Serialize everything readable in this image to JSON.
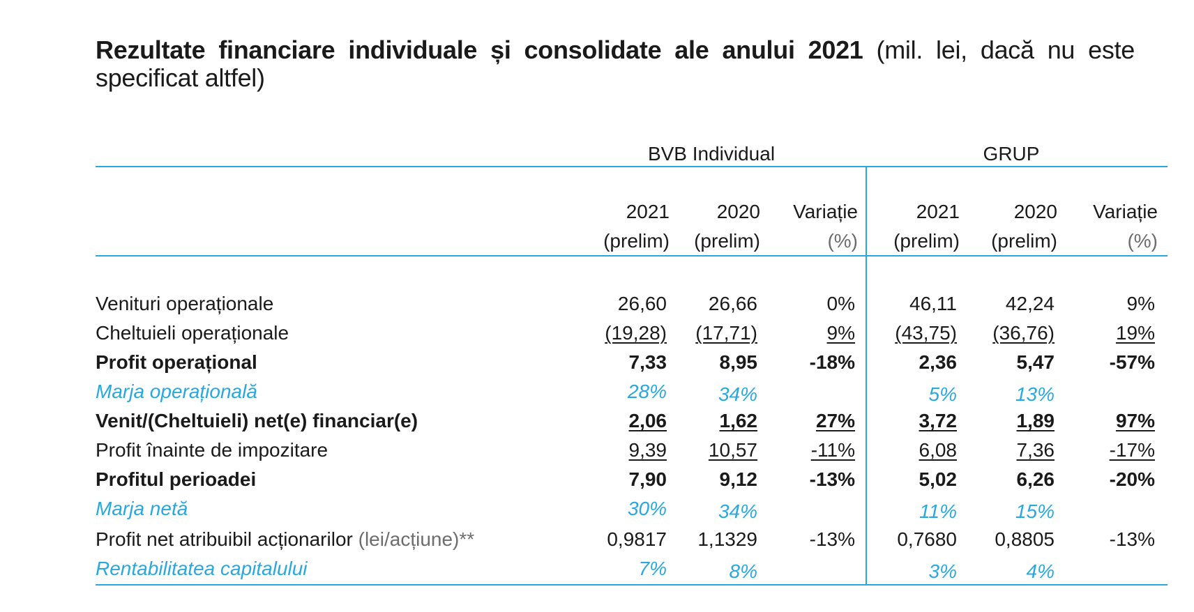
{
  "title": {
    "bold": "Rezultate financiare individuale și consolidate ale anului 2021",
    "normal": " (mil. lei, dacă nu este specificat altfel)"
  },
  "groups": {
    "individual": "BVB Individual",
    "grup": "GRUP"
  },
  "columns": [
    {
      "line1": "2021",
      "line2": "(prelim)"
    },
    {
      "line1": "2020",
      "line2": "(prelim)"
    },
    {
      "line1": "Variație",
      "line2": "(%)"
    },
    {
      "line1": "2021",
      "line2": "(prelim)"
    },
    {
      "line1": "2020",
      "line2": "(prelim)"
    },
    {
      "line1": "Variație",
      "line2": "(%)"
    }
  ],
  "rows": [
    {
      "label": "Venituri operaționale",
      "values": [
        "26,60",
        "26,66",
        "0%",
        "46,11",
        "42,24",
        "9%"
      ]
    },
    {
      "label": "Cheltuieli operaționale",
      "values": [
        "(19,28)",
        "(17,71)",
        "9%",
        "(43,75)",
        "(36,76)",
        "19%"
      ]
    },
    {
      "label": "Profit operațional",
      "values": [
        "7,33",
        "8,95",
        "-18%",
        "2,36",
        "5,47",
        "-57%"
      ]
    },
    {
      "label": "Marja operațională",
      "values": [
        "28%",
        "34%",
        "",
        "5%",
        "13%",
        ""
      ]
    },
    {
      "label": "Venit/(Cheltuieli) net(e) financiar(e)",
      "values": [
        "2,06",
        "1,62",
        "27%",
        "3,72",
        "1,89",
        "97%"
      ]
    },
    {
      "label": "Profit înainte de impozitare",
      "values": [
        "9,39",
        "10,57",
        "-11%",
        "6,08",
        "7,36",
        "-17%"
      ]
    },
    {
      "label": "Profitul perioadei",
      "values": [
        "7,90",
        "9,12",
        "-13%",
        "5,02",
        "6,26",
        "-20%"
      ]
    },
    {
      "label": "Marja netă",
      "values": [
        "30%",
        "34%",
        "",
        "11%",
        "15%",
        ""
      ]
    },
    {
      "label": "Profit net atribuibil acționarilor",
      "label_suffix": " (lei/acțiune)**",
      "values": [
        "0,9817",
        "1,1329",
        "-13%",
        "0,7680",
        "0,8805",
        "-13%"
      ]
    },
    {
      "label": "Rentabilitatea capitalului",
      "values": [
        "7%",
        "8%",
        "",
        "3%",
        "4%",
        ""
      ]
    }
  ],
  "colors": {
    "accent": "#29a8e0",
    "text": "#1a1a1a",
    "muted": "#6d6d6d"
  }
}
